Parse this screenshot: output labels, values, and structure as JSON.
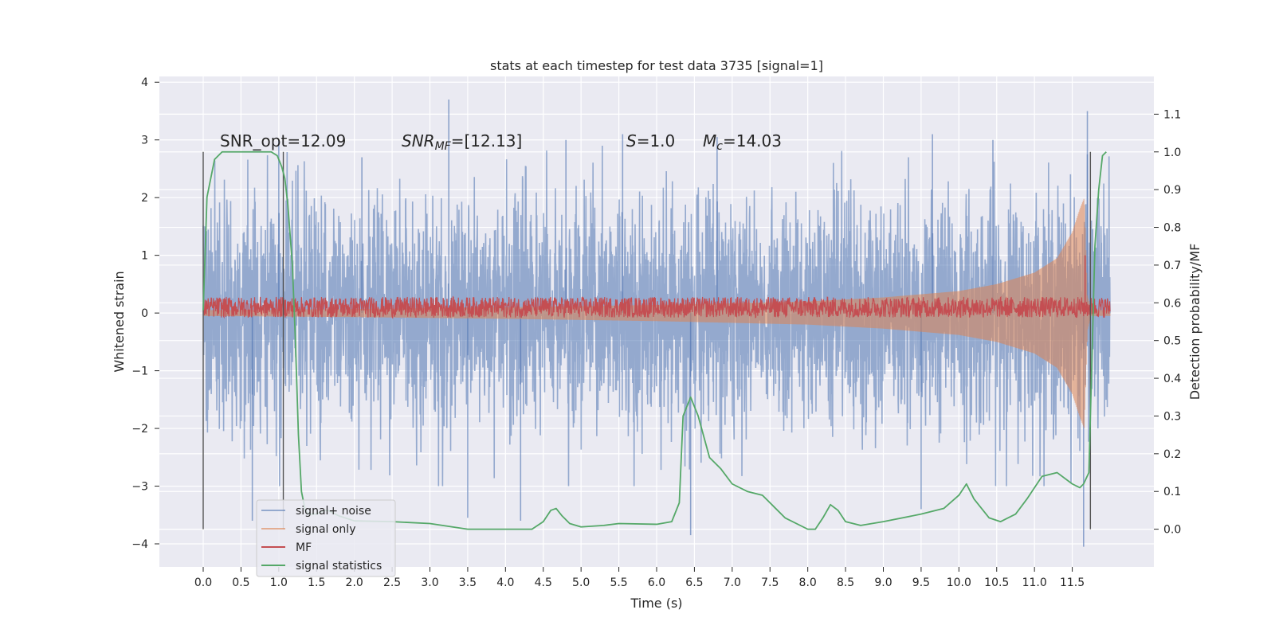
{
  "chart_data": {
    "type": "line",
    "title": "stats at each timestep for test data 3735 [signal=1]",
    "xlabel": "Time (s)",
    "ylabel": "Whitened strain",
    "y2label": "Detection probability/MF",
    "xlim": [
      -0.58,
      12.58
    ],
    "ylim": [
      -4.4,
      4.1
    ],
    "y2lim": [
      -0.1,
      1.2
    ],
    "x_ticks": [
      "0.0",
      "0.5",
      "1.0",
      "1.5",
      "2.0",
      "2.5",
      "3.0",
      "3.5",
      "4.0",
      "4.5",
      "5.0",
      "5.5",
      "6.0",
      "6.5",
      "7.0",
      "7.5",
      "8.0",
      "8.5",
      "9.0",
      "9.5",
      "10.0",
      "10.5",
      "11.0",
      "11.5"
    ],
    "y_ticks": [
      "4",
      "3",
      "2",
      "1",
      "0",
      "−1",
      "−2",
      "−3",
      "−4"
    ],
    "y2_ticks": [
      "1.1",
      "1.0",
      "0.9",
      "0.8",
      "0.7",
      "0.6",
      "0.5",
      "0.4",
      "0.3",
      "0.2",
      "0.1",
      "0.0"
    ],
    "grid": true,
    "legend_position": "lower-left",
    "annotations": {
      "snr_opt": "SNR_opt=12.09",
      "snr_mf_label": "SNR",
      "snr_mf_sub": "MF",
      "snr_mf_value": "=[12.13]",
      "s_label": "S",
      "s_value": "=1.0",
      "mc_label": "M",
      "mc_sub": "c",
      "mc_value": "=14.03"
    },
    "vertical_lines": [
      0.0,
      1.06,
      11.74
    ],
    "series": [
      {
        "name": "signal+ noise",
        "color": "#4c72b0",
        "style": "noise",
        "x_range": [
          0.0,
          12.0
        ],
        "sigma": 1.0,
        "spikes": [
          [
            1.0,
            3.0
          ],
          [
            2.1,
            2.7
          ],
          [
            3.25,
            3.7
          ],
          [
            4.8,
            3.0
          ],
          [
            5.55,
            3.1
          ],
          [
            6.8,
            3.05
          ],
          [
            9.65,
            3.1
          ],
          [
            10.45,
            3.0
          ],
          [
            11.7,
            3.5
          ],
          [
            0.65,
            -3.6
          ],
          [
            3.5,
            -3.55
          ],
          [
            4.2,
            -3.6
          ],
          [
            6.45,
            -3.85
          ],
          [
            9.5,
            -3.4
          ],
          [
            11.65,
            -4.05
          ]
        ]
      },
      {
        "name": "signal only",
        "color": "#dd8452",
        "style": "chirp",
        "points": [
          [
            0.0,
            0.05
          ],
          [
            2.0,
            0.07
          ],
          [
            4.0,
            0.1
          ],
          [
            6.0,
            0.14
          ],
          [
            7.0,
            0.17
          ],
          [
            8.0,
            0.2
          ],
          [
            9.0,
            0.27
          ],
          [
            10.0,
            0.38
          ],
          [
            10.5,
            0.5
          ],
          [
            11.0,
            0.7
          ],
          [
            11.3,
            0.95
          ],
          [
            11.5,
            1.4
          ],
          [
            11.6,
            1.8
          ],
          [
            11.66,
            2.0
          ],
          [
            11.7,
            0.3
          ],
          [
            11.75,
            0.05
          ],
          [
            12.0,
            0.05
          ]
        ]
      },
      {
        "name": "MF",
        "color": "#c44e52",
        "style": "band",
        "x_range": [
          0.0,
          12.0
        ],
        "center": 0.1,
        "amplitude": 0.18
      },
      {
        "name": "signal statistics",
        "color": "#55a868",
        "style": "line",
        "axis": "right",
        "points": [
          [
            0.0,
            0.58
          ],
          [
            0.05,
            0.88
          ],
          [
            0.1,
            0.93
          ],
          [
            0.15,
            0.98
          ],
          [
            0.25,
            1.0
          ],
          [
            0.5,
            1.0
          ],
          [
            0.9,
            1.0
          ],
          [
            0.98,
            0.99
          ],
          [
            1.04,
            0.96
          ],
          [
            1.08,
            0.93
          ],
          [
            1.12,
            0.86
          ],
          [
            1.18,
            0.7
          ],
          [
            1.22,
            0.5
          ],
          [
            1.26,
            0.25
          ],
          [
            1.3,
            0.1
          ],
          [
            1.35,
            0.05
          ],
          [
            1.4,
            0.04
          ],
          [
            1.5,
            0.04
          ],
          [
            1.6,
            0.05
          ],
          [
            1.65,
            0.05
          ],
          [
            1.7,
            0.045
          ],
          [
            1.8,
            0.035
          ],
          [
            2.0,
            0.022
          ],
          [
            2.5,
            0.02
          ],
          [
            3.0,
            0.015
          ],
          [
            3.5,
            0.0
          ],
          [
            4.0,
            0.0
          ],
          [
            4.35,
            0.0
          ],
          [
            4.5,
            0.02
          ],
          [
            4.6,
            0.05
          ],
          [
            4.67,
            0.055
          ],
          [
            4.75,
            0.035
          ],
          [
            4.85,
            0.015
          ],
          [
            5.0,
            0.006
          ],
          [
            5.3,
            0.01
          ],
          [
            5.5,
            0.015
          ],
          [
            6.0,
            0.013
          ],
          [
            6.2,
            0.02
          ],
          [
            6.3,
            0.07
          ],
          [
            6.35,
            0.3
          ],
          [
            6.45,
            0.35
          ],
          [
            6.55,
            0.3
          ],
          [
            6.7,
            0.19
          ],
          [
            6.85,
            0.16
          ],
          [
            7.0,
            0.12
          ],
          [
            7.2,
            0.1
          ],
          [
            7.4,
            0.09
          ],
          [
            7.55,
            0.06
          ],
          [
            7.7,
            0.03
          ],
          [
            8.0,
            0.0
          ],
          [
            8.1,
            0.0
          ],
          [
            8.2,
            0.03
          ],
          [
            8.3,
            0.065
          ],
          [
            8.4,
            0.05
          ],
          [
            8.5,
            0.02
          ],
          [
            8.7,
            0.01
          ],
          [
            9.0,
            0.02
          ],
          [
            9.5,
            0.04
          ],
          [
            9.8,
            0.055
          ],
          [
            10.0,
            0.09
          ],
          [
            10.1,
            0.12
          ],
          [
            10.2,
            0.08
          ],
          [
            10.4,
            0.03
          ],
          [
            10.55,
            0.02
          ],
          [
            10.75,
            0.04
          ],
          [
            10.9,
            0.08
          ],
          [
            11.1,
            0.14
          ],
          [
            11.3,
            0.15
          ],
          [
            11.5,
            0.12
          ],
          [
            11.6,
            0.11
          ],
          [
            11.65,
            0.12
          ],
          [
            11.72,
            0.15
          ],
          [
            11.76,
            0.45
          ],
          [
            11.8,
            0.75
          ],
          [
            11.85,
            0.9
          ],
          [
            11.9,
            0.99
          ],
          [
            11.95,
            1.0
          ]
        ]
      }
    ],
    "legend": [
      "signal+ noise",
      "signal only",
      "MF",
      "signal statistics"
    ]
  }
}
